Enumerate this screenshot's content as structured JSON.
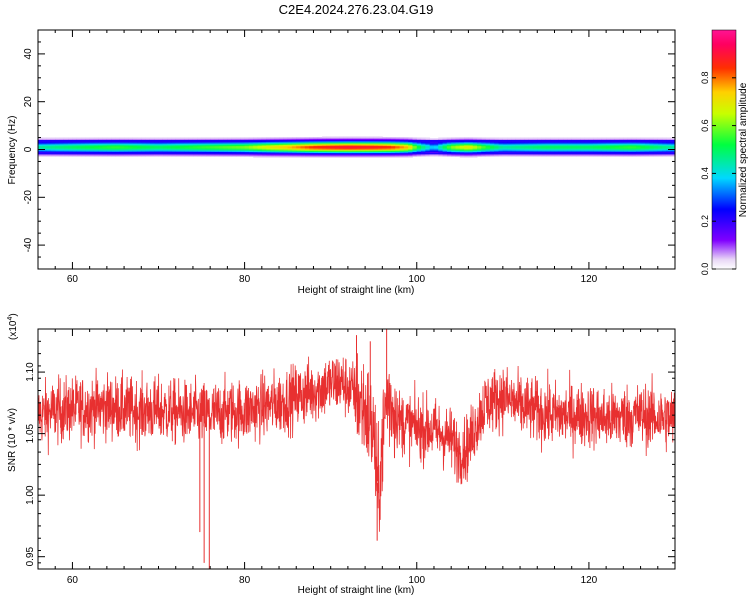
{
  "figure": {
    "title": "C2E4.2024.276.23.04.G19"
  },
  "chart_data": [
    {
      "type": "heatmap",
      "title": "C2E4.2024.276.23.04.G19",
      "xlabel": "Height of straight line (km)",
      "ylabel": "Frequency (Hz)",
      "xlim": [
        56,
        130
      ],
      "ylim": [
        -50,
        50
      ],
      "xticks": [
        60,
        80,
        100,
        120
      ],
      "yticks": [
        -40,
        -20,
        0,
        20,
        40
      ],
      "ytick_labels": [
        "-40",
        "-20",
        "0",
        "20",
        "40"
      ],
      "colorbar": {
        "label": "Normalized spectral amplitude",
        "range": [
          0.0,
          1.0
        ],
        "ticks": [
          0.0,
          0.2,
          0.4,
          0.6,
          0.8
        ],
        "tick_labels": [
          "0.0",
          "0.2",
          "0.4",
          "0.6",
          "0.8"
        ],
        "colormap": "rainbow (white-purple-blue-cyan-green-yellow-orange-red-magenta)"
      },
      "ridge": {
        "frequency_hz": 1,
        "half_width_hz": 3,
        "amplitude_profile": {
          "height_km": [
            56,
            60,
            65,
            70,
            75,
            80,
            83,
            85,
            88,
            90,
            92,
            95,
            97,
            99,
            100,
            102,
            104,
            106,
            108,
            110,
            115,
            120,
            125,
            130
          ],
          "peak_amplitude": [
            0.45,
            0.5,
            0.55,
            0.5,
            0.55,
            0.6,
            0.7,
            0.75,
            0.85,
            0.88,
            0.9,
            0.88,
            0.85,
            0.75,
            0.55,
            0.35,
            0.6,
            0.7,
            0.55,
            0.45,
            0.5,
            0.5,
            0.55,
            0.45
          ]
        }
      },
      "grid": false
    },
    {
      "type": "line",
      "xlabel": "Height of straight line (km)",
      "ylabel": "SNR (10 * v/v)",
      "yscale_label": "(x10",
      "yscale_exponent": "4",
      "xlim": [
        56,
        130
      ],
      "ylim": [
        0.94,
        1.135
      ],
      "xticks": [
        60,
        80,
        100,
        120
      ],
      "yticks": [
        0.95,
        1.0,
        1.05,
        1.1
      ],
      "ytick_labels": [
        "0.95",
        "1.00",
        "1.05",
        "1.10"
      ],
      "series": [
        {
          "color": "#e83030",
          "x": [
            56,
            58,
            60,
            62,
            64,
            66,
            68,
            70,
            72,
            74,
            76,
            78,
            80,
            82,
            84,
            86,
            88,
            90,
            91,
            92,
            93,
            94,
            95,
            95.5,
            96,
            96.5,
            97,
            98,
            100,
            102,
            104,
            105,
            106,
            107,
            108,
            110,
            112,
            114,
            116,
            118,
            120,
            122,
            124,
            126,
            128,
            130
          ],
          "y": [
            1.065,
            1.068,
            1.07,
            1.071,
            1.072,
            1.07,
            1.068,
            1.069,
            1.067,
            1.066,
            1.065,
            1.068,
            1.068,
            1.072,
            1.075,
            1.08,
            1.085,
            1.09,
            1.092,
            1.088,
            1.08,
            1.07,
            1.05,
            1.0,
            1.04,
            1.08,
            1.075,
            1.06,
            1.055,
            1.053,
            1.045,
            1.035,
            1.04,
            1.06,
            1.075,
            1.08,
            1.072,
            1.068,
            1.065,
            1.065,
            1.065,
            1.062,
            1.064,
            1.065,
            1.063,
            1.062
          ]
        }
      ],
      "spikes": [
        {
          "x": 74.8,
          "y": 0.97
        },
        {
          "x": 75.3,
          "y": 0.945
        },
        {
          "x": 75.9,
          "y": 0.94
        },
        {
          "x": 95.4,
          "y": 0.963
        },
        {
          "x": 94.6,
          "y": 1.125
        },
        {
          "x": 96.5,
          "y": 1.135
        },
        {
          "x": 93.0,
          "y": 1.13
        }
      ],
      "grid": false
    }
  ]
}
